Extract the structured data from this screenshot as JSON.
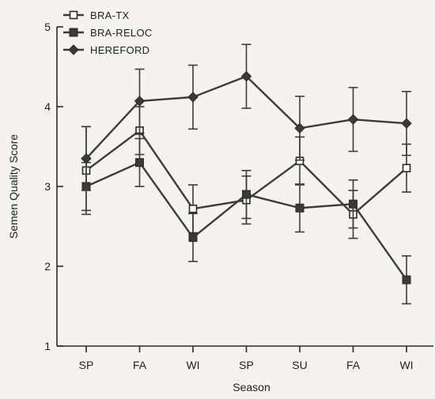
{
  "chart_data": {
    "type": "line",
    "xlabel": "Season",
    "ylabel": "Semen Quality Score",
    "ylim": [
      1,
      5
    ],
    "yticks": [
      "1",
      "2",
      "3",
      "4",
      "5"
    ],
    "categories": [
      "SP",
      "FA",
      "WI",
      "SP",
      "SU",
      "FA",
      "WI"
    ],
    "legend_position": "top-left",
    "grid": false,
    "series": [
      {
        "name": "BRA-TX",
        "marker": "open-square",
        "values": [
          3.2,
          3.7,
          2.72,
          2.83,
          3.32,
          2.65,
          3.23
        ],
        "error": [
          0.55,
          0.3,
          0.3,
          0.3,
          0.3,
          0.3,
          0.3
        ]
      },
      {
        "name": "BRA-RELOC",
        "marker": "filled-square",
        "values": [
          3.0,
          3.3,
          2.36,
          2.9,
          2.73,
          2.78,
          1.83
        ],
        "error": [
          0.3,
          0.3,
          0.3,
          0.3,
          0.3,
          0.3,
          0.3
        ]
      },
      {
        "name": "HEREFORD",
        "marker": "filled-diamond",
        "values": [
          3.35,
          4.07,
          4.12,
          4.38,
          3.73,
          3.84,
          3.79
        ],
        "error": [
          0.4,
          0.4,
          0.4,
          0.4,
          0.4,
          0.4,
          0.4
        ]
      }
    ]
  }
}
